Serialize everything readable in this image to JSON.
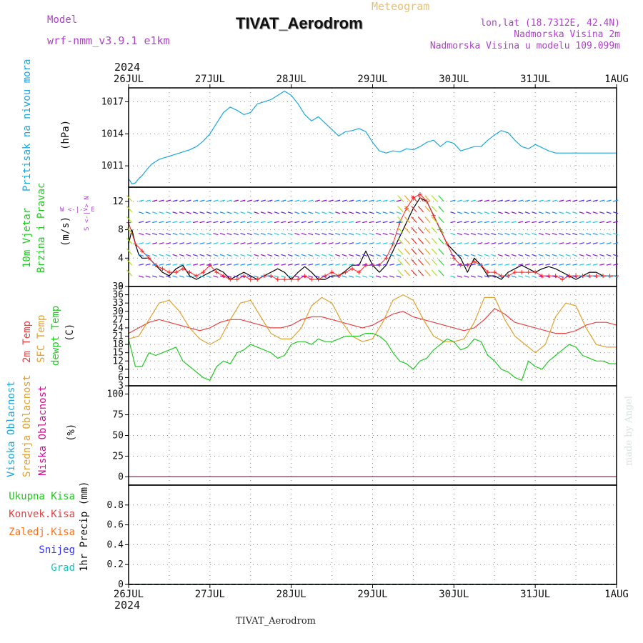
{
  "header": {
    "model_label": "Model",
    "model_value": "wrf-nmm_v3.9.1  e1km",
    "meteogram_label": "Meteogram",
    "station_title": "TIVAT_Aerodrom",
    "lonlat": "lon,lat (18.7312E, 42.4N)",
    "elevation": "Nadmorska Visina 2m",
    "model_elevation": "Nadmorska Visina u modelu 109.099m"
  },
  "time_axis": {
    "year": "2024",
    "labels": [
      "26JUL",
      "27JUL",
      "28JUL",
      "29JUL",
      "30JUL",
      "31JUL",
      "1AUG"
    ]
  },
  "footer": {
    "station": "TIVAT_Aerodrom"
  },
  "watermark": "made by Angel",
  "colors": {
    "pressure": "#1aa7e0",
    "wind_speed": "#000000",
    "wind_gust": "#ff2020",
    "temp_2m": "#e84040",
    "temp_sfc": "#e0a030",
    "dewpoint": "#22c822",
    "cloud_high": "#1aa7e0",
    "cloud_mid": "#e0a030",
    "cloud_low": "#d01090",
    "precip_total": "#22c822",
    "precip_conv": "#e84040",
    "precip_frz": "#ff7020",
    "snow": "#3030ff",
    "hail": "#20c0c0",
    "title_purple": "#b040d0"
  },
  "panels": {
    "pressure": {
      "label": "Pritisak na nivou mora",
      "unit": "(hPa)"
    },
    "wind": {
      "label1": "10m Vjetar",
      "label2": "Brzina i Pravac",
      "unit": "(m/s)",
      "compass": "W <-|-> E",
      "compass_vert": "S <-|-> N"
    },
    "temp": {
      "label1": "2m Temp",
      "label2": "SFC Temp",
      "label3": "dewpt Temp",
      "unit": "(C)"
    },
    "cloud": {
      "label1": "Visoka Oblacnost",
      "label2": "Srednja Oblacnost",
      "label3": "Niska Oblacnost",
      "unit": "(%)"
    },
    "precip": {
      "label1": "Ukupna Kisa",
      "label2": "Konvek.Kisa",
      "label3": "Zaledj.Kisa",
      "label4": "Snijeg",
      "label5": "Grad",
      "unit": "1hr Precip (mm)"
    }
  },
  "chart_data": [
    {
      "type": "line",
      "title": "Pritisak na nivou mora",
      "ylabel": "(hPa)",
      "x_unit": "hours since 26JUL 00",
      "xlim": [
        0,
        144
      ],
      "ylim": [
        1009.0,
        1018.3
      ],
      "yticks": [
        1011,
        1014,
        1017
      ],
      "ytick_labels": [
        "1011",
        "1014",
        "1017"
      ],
      "grid": true,
      "series": [
        {
          "name": "Pritisak na nivou mora",
          "color": "#1aa7e0",
          "x": [
            0,
            1,
            2,
            3,
            4,
            5,
            6,
            7,
            8,
            9,
            10,
            12,
            14,
            16,
            18,
            20,
            22,
            24,
            26,
            28,
            30,
            32,
            34,
            36,
            38,
            40,
            42,
            44,
            46,
            48,
            50,
            52,
            54,
            56,
            58,
            60,
            62,
            64,
            66,
            68,
            70,
            72,
            74,
            76,
            78,
            80,
            82,
            84,
            86,
            88,
            90,
            92,
            94,
            96,
            98,
            100,
            102,
            104,
            106,
            108,
            110,
            112,
            114,
            116,
            118,
            120,
            122,
            124,
            126,
            128,
            130,
            132,
            134,
            136,
            138,
            140,
            142,
            144
          ],
          "values": [
            1009.8,
            1009.3,
            1009.4,
            1009.8,
            1010.1,
            1010.5,
            1010.9,
            1011.2,
            1011.4,
            1011.6,
            1011.7,
            1011.9,
            1012.1,
            1012.3,
            1012.5,
            1012.8,
            1013.3,
            1014.0,
            1015.0,
            1016.0,
            1016.5,
            1016.2,
            1015.8,
            1016.0,
            1016.8,
            1017.0,
            1017.2,
            1017.6,
            1018.0,
            1017.6,
            1016.8,
            1015.8,
            1015.2,
            1015.6,
            1015.0,
            1014.4,
            1013.8,
            1014.2,
            1014.3,
            1014.5,
            1014.2,
            1013.2,
            1012.4,
            1012.2,
            1012.4,
            1012.3,
            1012.6,
            1012.5,
            1012.8,
            1013.2,
            1013.4,
            1012.8,
            1013.3,
            1013.1,
            1012.4,
            1012.6,
            1012.8,
            1012.8,
            1013.4,
            1013.9,
            1014.3,
            1014.1,
            1013.4,
            1012.8,
            1012.6,
            1013.0,
            1012.7,
            1012.4,
            1012.2,
            1012.2,
            1012.2,
            1012.2,
            1012.2,
            1012.2,
            1012.2,
            1012.2,
            1012.2,
            1012.2
          ]
        }
      ]
    },
    {
      "type": "line",
      "title": "10m Vjetar Brzina i Pravac",
      "ylabel": "(m/s)",
      "x_unit": "hours since 26JUL 00",
      "xlim": [
        0,
        144
      ],
      "ylim": [
        0,
        14
      ],
      "yticks": [
        0,
        4,
        8,
        12
      ],
      "ytick_labels": [
        "0",
        "4",
        "8",
        "12"
      ],
      "grid": true,
      "series": [
        {
          "name": "speed",
          "color": "#000000",
          "x": [
            0,
            1,
            2,
            3,
            4,
            6,
            8,
            10,
            12,
            14,
            16,
            18,
            20,
            22,
            24,
            26,
            28,
            30,
            32,
            34,
            36,
            38,
            40,
            42,
            44,
            46,
            48,
            50,
            52,
            54,
            56,
            58,
            60,
            62,
            64,
            66,
            68,
            70,
            72,
            74,
            76,
            78,
            80,
            82,
            84,
            86,
            88,
            90,
            92,
            94,
            96,
            98,
            100,
            102,
            104,
            106,
            108,
            110,
            112,
            114,
            116,
            118,
            120,
            122,
            124,
            126,
            128,
            130,
            132,
            134,
            136,
            138,
            140,
            142,
            144
          ],
          "values": [
            6,
            8,
            6,
            4.5,
            4,
            4,
            3,
            2,
            1.5,
            2.5,
            3,
            1.5,
            1,
            1.5,
            2,
            2.5,
            2,
            1,
            1.5,
            2,
            1.5,
            1,
            1.5,
            2,
            2.5,
            2,
            1,
            2,
            2.8,
            2,
            1,
            1,
            1.5,
            1.5,
            2.2,
            3,
            3,
            5,
            3,
            2,
            3,
            5,
            7,
            9,
            11,
            12.5,
            12,
            10,
            8,
            6,
            5,
            4,
            2,
            4,
            3,
            1.5,
            1.5,
            1,
            2,
            2.5,
            3,
            2.5,
            2,
            2.5,
            2.8,
            2.5,
            2,
            1.5,
            1,
            1.5,
            2,
            2,
            1.5,
            1.5,
            1.5
          ]
        },
        {
          "name": "gust",
          "color": "#ff2020",
          "x": [
            0,
            2,
            4,
            6,
            8,
            10,
            12,
            14,
            16,
            18,
            20,
            22,
            24,
            26,
            28,
            30,
            32,
            34,
            36,
            38,
            40,
            42,
            44,
            46,
            48,
            50,
            52,
            54,
            56,
            58,
            60,
            62,
            64,
            66,
            68,
            70,
            72,
            74,
            76,
            78,
            80,
            82,
            84,
            86,
            88,
            90,
            92,
            94,
            96,
            98,
            100,
            102,
            104,
            106,
            108,
            110,
            112,
            114,
            116,
            118,
            120,
            122,
            124,
            126,
            128,
            130,
            132,
            134,
            136,
            138,
            140,
            142,
            144
          ],
          "values": [
            9,
            6,
            5,
            4,
            3,
            2.5,
            2,
            2,
            2.5,
            2,
            1.5,
            2,
            3,
            2,
            1.5,
            1,
            1,
            1.5,
            1,
            1,
            1.5,
            1.5,
            1,
            1,
            1,
            1,
            1.5,
            1,
            1,
            1.5,
            2,
            1.5,
            2,
            2.5,
            2,
            3,
            3,
            3,
            4,
            6,
            9,
            11,
            12.5,
            13,
            12,
            10,
            8,
            6,
            4,
            3,
            3,
            3.5,
            3,
            2,
            2,
            1.5,
            1.5,
            2,
            2,
            2,
            2,
            1.5,
            1.5,
            1.5,
            1,
            1.5,
            1.5,
            1.5,
            1.5,
            1.5,
            1.5,
            1.5,
            1.5
          ]
        }
      ]
    },
    {
      "type": "line",
      "title": "2m Temp / SFC Temp / dewpt Temp",
      "ylabel": "(C)",
      "x_unit": "hours since 26JUL 00",
      "xlim": [
        0,
        144
      ],
      "ylim": [
        3,
        39
      ],
      "yticks": [
        3,
        6,
        9,
        12,
        15,
        18,
        21,
        24,
        27,
        30,
        33,
        36,
        39
      ],
      "ytick_labels": [
        "3",
        "6",
        "9",
        "12",
        "15",
        "18",
        "21",
        "24",
        "27",
        "30",
        "33",
        "36",
        "39"
      ],
      "grid": true,
      "series": [
        {
          "name": "2m Temp",
          "color": "#e84040",
          "x": [
            0,
            3,
            6,
            9,
            12,
            15,
            18,
            21,
            24,
            27,
            30,
            33,
            36,
            39,
            42,
            45,
            48,
            51,
            54,
            57,
            60,
            63,
            66,
            69,
            72,
            75,
            78,
            81,
            84,
            87,
            90,
            93,
            96,
            99,
            102,
            105,
            108,
            111,
            114,
            117,
            120,
            123,
            126,
            129,
            132,
            135,
            138,
            141,
            144
          ],
          "values": [
            22,
            24,
            26,
            27,
            26,
            25,
            24,
            23,
            24,
            26,
            27,
            27,
            26,
            25,
            24,
            24,
            25,
            27,
            28,
            28,
            27,
            26,
            25,
            24,
            25,
            27,
            29,
            30,
            28,
            27,
            26,
            25,
            24,
            23,
            24,
            27,
            31,
            29,
            26,
            25,
            24,
            23,
            22,
            22,
            23,
            25,
            26,
            26,
            25
          ]
        },
        {
          "name": "SFC Temp",
          "color": "#e0a030",
          "x": [
            0,
            3,
            6,
            9,
            12,
            15,
            18,
            21,
            24,
            27,
            30,
            33,
            36,
            39,
            42,
            45,
            48,
            51,
            54,
            57,
            60,
            63,
            66,
            69,
            72,
            75,
            78,
            81,
            84,
            87,
            90,
            93,
            96,
            99,
            102,
            105,
            108,
            111,
            114,
            117,
            120,
            123,
            126,
            129,
            132,
            135,
            138,
            141,
            144
          ],
          "values": [
            20,
            21,
            27,
            33,
            34,
            30,
            24,
            20,
            18,
            20,
            27,
            33,
            34,
            28,
            22,
            20,
            20,
            24,
            32,
            35,
            33,
            26,
            21,
            19,
            20,
            26,
            34,
            36,
            34,
            27,
            21,
            19,
            19,
            20,
            26,
            35,
            35,
            27,
            21,
            18,
            15,
            18,
            28,
            33,
            32,
            24,
            18,
            17,
            17
          ]
        },
        {
          "name": "dewpt Temp",
          "color": "#22c822",
          "x": [
            0,
            2,
            4,
            6,
            8,
            10,
            12,
            14,
            16,
            18,
            20,
            22,
            24,
            26,
            28,
            30,
            32,
            34,
            36,
            38,
            40,
            42,
            44,
            46,
            48,
            50,
            52,
            54,
            56,
            58,
            60,
            62,
            64,
            66,
            68,
            70,
            72,
            74,
            76,
            78,
            80,
            82,
            84,
            86,
            88,
            90,
            92,
            94,
            96,
            98,
            100,
            102,
            104,
            106,
            108,
            110,
            112,
            114,
            116,
            118,
            120,
            122,
            124,
            126,
            128,
            130,
            132,
            134,
            136,
            138,
            140,
            142,
            144
          ],
          "values": [
            20,
            10,
            10,
            15,
            14,
            15,
            16,
            17,
            12,
            10,
            8,
            6,
            5,
            10,
            12,
            11,
            15,
            16,
            18,
            17,
            16,
            15,
            13,
            14,
            18,
            19,
            19,
            18,
            20,
            19,
            19,
            20,
            21,
            21,
            21,
            22,
            22,
            21,
            19,
            15,
            12,
            11,
            9,
            12,
            13,
            16,
            18,
            20,
            19,
            16,
            17,
            20,
            19,
            14,
            12,
            9,
            8,
            6,
            5,
            12,
            10,
            9,
            12,
            14,
            16,
            18,
            17,
            14,
            13,
            12,
            12,
            11,
            11
          ]
        }
      ]
    },
    {
      "type": "line",
      "title": "Visoka / Srednja / Niska Oblacnost",
      "ylabel": "(%)",
      "x_unit": "hours since 26JUL 00",
      "xlim": [
        0,
        144
      ],
      "ylim": [
        -10,
        110
      ],
      "yticks": [
        0,
        25,
        50,
        75,
        100
      ],
      "ytick_labels": [
        "0",
        "25",
        "50",
        "75",
        "100"
      ],
      "grid": true,
      "series": [
        {
          "name": "Visoka Oblacnost",
          "color": "#1aa7e0",
          "x": [
            0,
            144
          ],
          "values": [
            0,
            0
          ]
        },
        {
          "name": "Srednja Oblacnost",
          "color": "#e0a030",
          "x": [
            0,
            144
          ],
          "values": [
            0,
            0
          ]
        },
        {
          "name": "Niska Oblacnost",
          "color": "#d01090",
          "x": [
            0,
            144
          ],
          "values": [
            0,
            0
          ]
        }
      ]
    },
    {
      "type": "line",
      "title": "1hr Precip",
      "ylabel": "1hr Precip (mm)",
      "x_unit": "hours since 26JUL 00",
      "xlim": [
        0,
        144
      ],
      "ylim": [
        0,
        1.0
      ],
      "yticks": [
        0,
        0.2,
        0.4,
        0.6,
        0.8
      ],
      "ytick_labels": [
        "0",
        "0.2",
        "0.4",
        "0.6",
        "0.8"
      ],
      "grid": true,
      "series": [
        {
          "name": "Ukupna Kisa",
          "color": "#22c822",
          "x": [
            0,
            144
          ],
          "values": [
            0,
            0
          ]
        }
      ]
    }
  ]
}
